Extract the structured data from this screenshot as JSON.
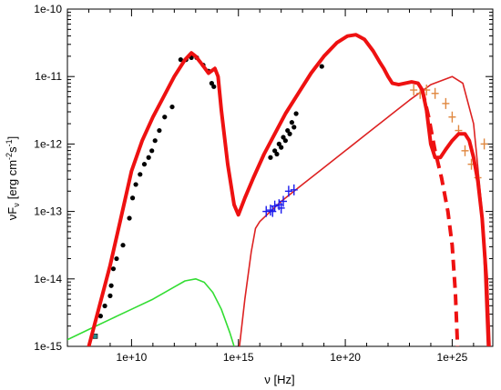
{
  "chart_data": {
    "type": "scatter",
    "title": "",
    "xlabel": "ν [Hz]",
    "ylabel": "νF",
    "ylabel_sub": "ν",
    "ylabel_unit": "[erg cm",
    "ylabel_unit_exp1": "-2",
    "ylabel_unit_mid": "s",
    "ylabel_unit_exp2": "-1",
    "ylabel_unit_end": "]",
    "x_scale": "log",
    "y_scale": "log",
    "xlim_log10": [
      7.0,
      26.9
    ],
    "ylim_log10": [
      -15,
      -10
    ],
    "x_tick_labels": [
      {
        "log10": 10,
        "label": "1e+10"
      },
      {
        "log10": 15,
        "label": "1e+15"
      },
      {
        "log10": 20,
        "label": "1e+20"
      },
      {
        "log10": 25,
        "label": "1e+25"
      }
    ],
    "y_tick_labels": [
      {
        "log10": -10,
        "label": "1e-10"
      },
      {
        "log10": -11,
        "label": "1e-11"
      },
      {
        "log10": -12,
        "label": "1e-12"
      },
      {
        "log10": -13,
        "label": "1e-13"
      },
      {
        "log10": -14,
        "label": "1e-14"
      },
      {
        "log10": -15,
        "label": "1e-15"
      }
    ],
    "grid": false,
    "colors": {
      "total_model": "#ee1111",
      "synchrotron_component": "#33dd33",
      "ic_component": "#dd2222",
      "radio_points": "#000000",
      "xray_points": "#000000",
      "uv_points": "#1a1aee",
      "gamma_points": "#e08840",
      "low_freq_marker": "#2a8a8a"
    },
    "series": [
      {
        "kind": "line",
        "style": "thick",
        "color_key": "total_model",
        "points": [
          [
            8.0,
            -15.0
          ],
          [
            8.5,
            -14.4
          ],
          [
            9.0,
            -13.8
          ],
          [
            9.5,
            -13.1
          ],
          [
            10.0,
            -12.4
          ],
          [
            10.5,
            -11.95
          ],
          [
            11.0,
            -11.6
          ],
          [
            11.5,
            -11.3
          ],
          [
            12.0,
            -11.0
          ],
          [
            12.5,
            -10.75
          ],
          [
            12.8,
            -10.65
          ],
          [
            13.0,
            -10.7
          ],
          [
            13.3,
            -10.82
          ],
          [
            13.6,
            -10.95
          ],
          [
            13.9,
            -10.88
          ],
          [
            14.05,
            -11.0
          ],
          [
            14.2,
            -11.5
          ],
          [
            14.5,
            -12.3
          ],
          [
            14.8,
            -12.9
          ],
          [
            15.0,
            -13.05
          ],
          [
            15.3,
            -12.8
          ],
          [
            15.7,
            -12.5
          ],
          [
            16.2,
            -12.15
          ],
          [
            16.7,
            -11.85
          ],
          [
            17.2,
            -11.55
          ],
          [
            17.8,
            -11.25
          ],
          [
            18.4,
            -10.95
          ],
          [
            19.0,
            -10.7
          ],
          [
            19.6,
            -10.5
          ],
          [
            20.1,
            -10.4
          ],
          [
            20.5,
            -10.38
          ],
          [
            20.9,
            -10.45
          ],
          [
            21.3,
            -10.62
          ],
          [
            21.6,
            -10.78
          ],
          [
            21.8,
            -10.88
          ],
          [
            22.0,
            -11.0
          ],
          [
            22.2,
            -11.1
          ],
          [
            22.5,
            -11.12
          ],
          [
            22.8,
            -11.1
          ],
          [
            23.1,
            -11.08
          ],
          [
            23.4,
            -11.1
          ],
          [
            23.6,
            -11.2
          ],
          [
            23.8,
            -11.5
          ],
          [
            24.0,
            -12.0
          ],
          [
            24.2,
            -12.2
          ],
          [
            24.45,
            -12.2
          ],
          [
            24.7,
            -12.08
          ],
          [
            25.0,
            -11.95
          ],
          [
            25.3,
            -11.85
          ],
          [
            25.6,
            -11.85
          ],
          [
            25.8,
            -11.95
          ],
          [
            26.0,
            -12.2
          ],
          [
            26.2,
            -12.55
          ],
          [
            26.4,
            -13.1
          ],
          [
            26.6,
            -14.0
          ],
          [
            26.72,
            -15.0
          ]
        ]
      },
      {
        "kind": "line",
        "style": "thick-dashed",
        "color_key": "total_model",
        "points": [
          [
            23.6,
            -11.2
          ],
          [
            23.9,
            -11.6
          ],
          [
            24.2,
            -12.1
          ],
          [
            24.5,
            -12.5
          ],
          [
            24.8,
            -13.0
          ],
          [
            25.0,
            -13.5
          ],
          [
            25.15,
            -14.2
          ],
          [
            25.25,
            -15.0
          ]
        ]
      },
      {
        "kind": "line",
        "style": "thin",
        "color_key": "synchrotron_component",
        "points": [
          [
            7.0,
            -14.9
          ],
          [
            8.0,
            -14.75
          ],
          [
            9.0,
            -14.6
          ],
          [
            10.0,
            -14.45
          ],
          [
            11.0,
            -14.3
          ],
          [
            12.0,
            -14.12
          ],
          [
            12.5,
            -14.03
          ],
          [
            13.0,
            -14.0
          ],
          [
            13.4,
            -14.05
          ],
          [
            13.8,
            -14.2
          ],
          [
            14.2,
            -14.45
          ],
          [
            14.6,
            -14.8
          ],
          [
            14.8,
            -15.0
          ]
        ]
      },
      {
        "kind": "line",
        "style": "thin",
        "color_key": "ic_component",
        "points": [
          [
            15.05,
            -15.0
          ],
          [
            15.3,
            -14.3
          ],
          [
            15.6,
            -13.6
          ],
          [
            15.8,
            -13.25
          ],
          [
            16.0,
            -13.15
          ],
          [
            16.5,
            -13.0
          ],
          [
            17.0,
            -12.85
          ],
          [
            18.0,
            -12.6
          ],
          [
            19.0,
            -12.35
          ],
          [
            20.0,
            -12.1
          ],
          [
            21.0,
            -11.85
          ],
          [
            22.0,
            -11.6
          ],
          [
            23.0,
            -11.35
          ],
          [
            24.0,
            -11.12
          ],
          [
            25.0,
            -11.0
          ],
          [
            25.5,
            -11.1
          ],
          [
            26.0,
            -11.7
          ],
          [
            26.4,
            -13.0
          ],
          [
            26.65,
            -15.0
          ]
        ]
      },
      {
        "kind": "points",
        "marker": "dot",
        "color_key": "radio_points",
        "points": [
          [
            8.55,
            -14.55
          ],
          [
            8.75,
            -14.4
          ],
          [
            9.0,
            -14.25
          ],
          [
            9.05,
            -14.1
          ],
          [
            9.15,
            -13.85
          ],
          [
            9.3,
            -13.7
          ],
          [
            9.6,
            -13.5
          ],
          [
            9.9,
            -13.1
          ],
          [
            10.05,
            -12.8
          ],
          [
            10.2,
            -12.6
          ],
          [
            10.4,
            -12.45
          ],
          [
            10.6,
            -12.3
          ],
          [
            10.8,
            -12.2
          ],
          [
            10.95,
            -12.1
          ],
          [
            11.1,
            -11.95
          ],
          [
            11.3,
            -11.8
          ],
          [
            11.55,
            -11.6
          ],
          [
            11.9,
            -11.45
          ],
          [
            12.3,
            -10.75
          ],
          [
            12.55,
            -10.75
          ],
          [
            12.8,
            -10.72
          ],
          [
            13.05,
            -10.72
          ],
          [
            13.35,
            -10.83
          ],
          [
            13.6,
            -10.92
          ],
          [
            13.75,
            -11.1
          ],
          [
            13.85,
            -11.15
          ]
        ]
      },
      {
        "kind": "points",
        "marker": "dot",
        "color_key": "xray_points",
        "points": [
          [
            16.5,
            -12.2
          ],
          [
            16.7,
            -12.1
          ],
          [
            16.9,
            -12.0
          ],
          [
            17.1,
            -11.9
          ],
          [
            17.3,
            -11.8
          ],
          [
            17.5,
            -11.68
          ],
          [
            17.7,
            -11.55
          ],
          [
            17.6,
            -11.75
          ],
          [
            17.0,
            -12.05
          ],
          [
            16.8,
            -12.15
          ],
          [
            17.2,
            -11.95
          ],
          [
            17.4,
            -11.85
          ],
          [
            18.9,
            -10.85
          ]
        ]
      },
      {
        "kind": "points",
        "marker": "cross",
        "color_key": "uv_points",
        "points": [
          [
            16.3,
            -13.0
          ],
          [
            16.5,
            -12.98
          ],
          [
            16.7,
            -12.92
          ],
          [
            16.9,
            -12.9
          ],
          [
            17.1,
            -12.85
          ],
          [
            17.35,
            -12.7
          ],
          [
            17.6,
            -12.68
          ],
          [
            16.6,
            -13.0
          ],
          [
            17.0,
            -12.95
          ]
        ]
      },
      {
        "kind": "points",
        "marker": "cross",
        "color_key": "gamma_points",
        "points": [
          [
            23.2,
            -11.2
          ],
          [
            23.5,
            -11.25
          ],
          [
            23.8,
            -11.2
          ],
          [
            24.2,
            -11.25
          ],
          [
            24.7,
            -11.4
          ],
          [
            25.0,
            -11.6
          ],
          [
            25.3,
            -11.8
          ],
          [
            25.6,
            -12.1
          ],
          [
            25.9,
            -12.3
          ],
          [
            26.2,
            -12.5
          ],
          [
            26.5,
            -12.0
          ]
        ]
      },
      {
        "kind": "points",
        "marker": "square",
        "color_key": "low_freq_marker",
        "points": [
          [
            8.3,
            -14.85
          ]
        ]
      }
    ]
  }
}
